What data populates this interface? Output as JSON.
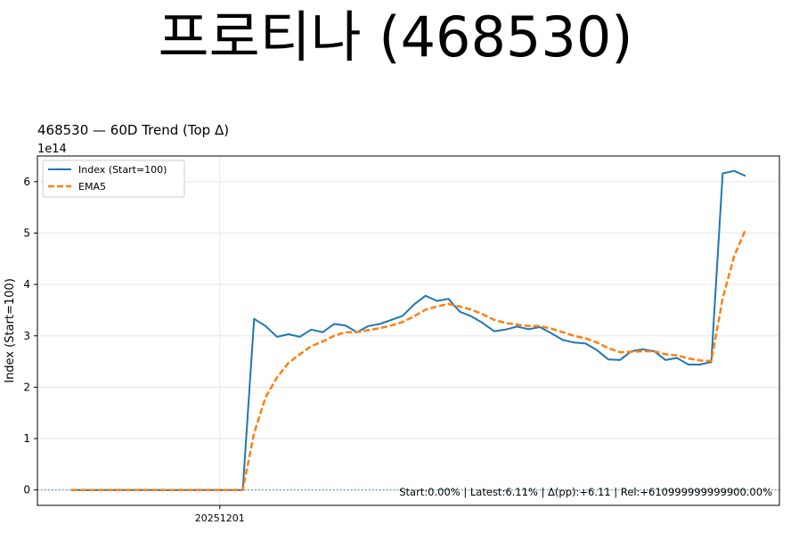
{
  "page": {
    "title": "프로티나 (468530)"
  },
  "chart_data": {
    "type": "line",
    "title": "468530 — 60D Trend (Top Δ)",
    "ylabel": "Index (Start=100)",
    "xlabel": "",
    "y_scale_label": "1e14",
    "ylim": [
      -0.3,
      6.5
    ],
    "y_ticks": [
      0,
      1,
      2,
      3,
      4,
      5,
      6
    ],
    "x_tick_labels": [
      {
        "index": 13,
        "label": "20251201"
      }
    ],
    "grid": true,
    "legend_position": "upper-left",
    "baseline": 0,
    "annotation": "Start:0.00% | Latest:6.11% | Δ(pp):+6.11 | Rel:+610999999999900.00%",
    "series": [
      {
        "name": "Index (Start=100)",
        "color": "#1f77b4",
        "style": "solid",
        "values": [
          0,
          0,
          0,
          0,
          0,
          0,
          0,
          0,
          0,
          0,
          0,
          0,
          0,
          0,
          0,
          0,
          3.33,
          3.19,
          2.98,
          3.03,
          2.98,
          3.12,
          3.07,
          3.23,
          3.2,
          3.07,
          3.19,
          3.23,
          3.31,
          3.39,
          3.61,
          3.78,
          3.68,
          3.72,
          3.47,
          3.38,
          3.25,
          3.09,
          3.12,
          3.18,
          3.13,
          3.17,
          3.05,
          2.92,
          2.87,
          2.85,
          2.72,
          2.54,
          2.53,
          2.7,
          2.74,
          2.7,
          2.53,
          2.57,
          2.44,
          2.44,
          2.49,
          6.16,
          6.21,
          6.11
        ]
      },
      {
        "name": "EMA5",
        "color": "#ff7f0e",
        "style": "dashed",
        "values": [
          0,
          0,
          0,
          0,
          0,
          0,
          0,
          0,
          0,
          0,
          0,
          0,
          0,
          0,
          0,
          0,
          1.11,
          1.8,
          2.19,
          2.47,
          2.64,
          2.8,
          2.89,
          3.0,
          3.07,
          3.07,
          3.11,
          3.15,
          3.2,
          3.27,
          3.38,
          3.51,
          3.57,
          3.62,
          3.57,
          3.51,
          3.42,
          3.31,
          3.25,
          3.22,
          3.19,
          3.19,
          3.14,
          3.07,
          3.0,
          2.95,
          2.87,
          2.76,
          2.68,
          2.69,
          2.7,
          2.7,
          2.64,
          2.62,
          2.56,
          2.52,
          2.51,
          3.73,
          4.55,
          5.07
        ]
      }
    ]
  }
}
